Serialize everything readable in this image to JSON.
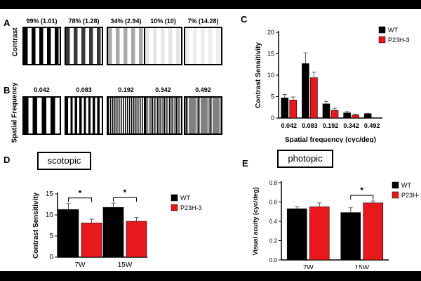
{
  "panels": {
    "A": {
      "letter": "A",
      "row_label": "Contrast",
      "gratings": [
        {
          "caption": "99% (1.01)",
          "contrast": 0.99
        },
        {
          "caption": "78% (1.28)",
          "contrast": 0.78
        },
        {
          "caption": "34% (2.94)",
          "contrast": 0.34
        },
        {
          "caption": "10% (10)",
          "contrast": 0.1
        },
        {
          "caption": "7% (14.28)",
          "contrast": 0.07
        }
      ]
    },
    "B": {
      "letter": "B",
      "row_label": "Spatial Frequency",
      "gratings": [
        {
          "caption": "0.042",
          "cycles": 4
        },
        {
          "caption": "0.083",
          "cycles": 8
        },
        {
          "caption": "0.192",
          "cycles": 17
        },
        {
          "caption": "0.342",
          "cycles": 30
        },
        {
          "caption": "0.492",
          "cycles": 42
        }
      ]
    },
    "C": {
      "letter": "C"
    },
    "D": {
      "letter": "D",
      "condition_label": "scotopic"
    },
    "E": {
      "letter": "E",
      "condition_label": "photopic"
    }
  },
  "colors": {
    "wt": "#000000",
    "p23h3": "#e8191c"
  },
  "chart_data": [
    {
      "id": "C",
      "type": "bar",
      "title": "",
      "xlabel": "Spatial frequency (cyc/deg)",
      "ylabel": "Contrast Sensitivity",
      "categories": [
        "0.042",
        "0.083",
        "0.192",
        "0.342",
        "0.492"
      ],
      "series": [
        {
          "name": "WT",
          "values": [
            4.7,
            12.7,
            3.3,
            1.2,
            1.0
          ],
          "errors": [
            0.8,
            2.5,
            0.6,
            0.3,
            0.1
          ]
        },
        {
          "name": "P23H-3",
          "values": [
            4.2,
            9.4,
            1.8,
            0.7,
            null
          ],
          "errors": [
            0.7,
            1.3,
            0.5,
            0.2,
            null
          ]
        }
      ],
      "ylim": [
        0,
        20
      ],
      "yticks": [
        0,
        5,
        10,
        15,
        20
      ],
      "legend": "top-right"
    },
    {
      "id": "D",
      "type": "bar",
      "title": "",
      "xlabel": "",
      "ylabel": "Contrast Sensitivity",
      "categories": [
        "7W",
        "15W"
      ],
      "series": [
        {
          "name": "WT",
          "values": [
            11.3,
            11.8
          ],
          "errors": [
            1.4,
            1.0
          ]
        },
        {
          "name": "P23H-3",
          "values": [
            8.1,
            8.5
          ],
          "errors": [
            0.9,
            0.9
          ]
        }
      ],
      "ylim": [
        0,
        15
      ],
      "yticks": [
        0,
        5,
        10,
        15
      ],
      "significance": [
        "*",
        "*"
      ],
      "legend": "right"
    },
    {
      "id": "E",
      "type": "bar",
      "title": "",
      "xlabel": "",
      "ylabel": "Visual acuity (cyc/deg)",
      "categories": [
        "7W",
        "15W"
      ],
      "series": [
        {
          "name": "WT",
          "values": [
            0.53,
            0.49
          ],
          "errors": [
            0.02,
            0.05
          ]
        },
        {
          "name": "P23H-3",
          "values": [
            0.55,
            0.59
          ],
          "errors": [
            0.04,
            0.02
          ]
        }
      ],
      "ylim": [
        0,
        0.8
      ],
      "yticks": [
        0.0,
        0.2,
        0.4,
        0.6,
        0.8
      ],
      "tick_labels": [
        "0.0",
        "0.2",
        "0.4",
        "0.6",
        "0.8"
      ],
      "significance": [
        null,
        "*"
      ],
      "legend": "top-right"
    }
  ]
}
